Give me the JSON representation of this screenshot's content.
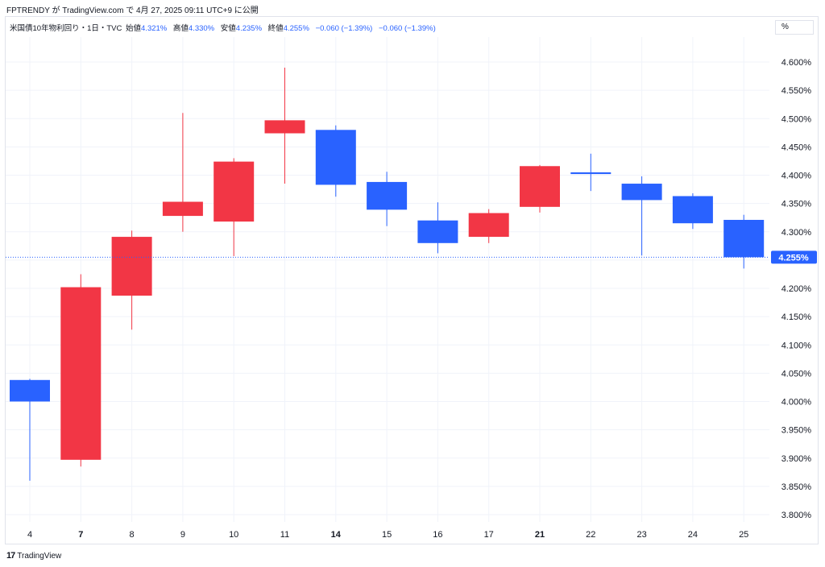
{
  "header": {
    "text": "FPTRENDY が TradingView.com で 4月 27, 2025 09:11 UTC+9 に公開"
  },
  "legend": {
    "symbol": "米国債10年物利回り・1日・TVC",
    "open_label": "始値",
    "open_value": "4.321%",
    "high_label": "高値",
    "high_value": "4.330%",
    "low_label": "安値",
    "low_value": "4.235%",
    "close_label": "終値",
    "close_value": "4.255%",
    "change": "−0.060 (−1.39%)",
    "change2": "−0.060 (−1.39%)"
  },
  "unit_button": "%",
  "footer": {
    "logo_mark": "17",
    "logo_text": "TradingView"
  },
  "colors": {
    "up": "#f23645",
    "down": "#2962ff",
    "grid": "#f0f3fa",
    "axis_text": "#131722"
  },
  "chart_data": {
    "type": "candlestick",
    "unit": "%",
    "ylim": [
      3.775,
      4.65
    ],
    "y_ticks": [
      "4.600%",
      "4.550%",
      "4.500%",
      "4.450%",
      "4.400%",
      "4.350%",
      "4.300%",
      "4.250%",
      "4.200%",
      "4.150%",
      "4.100%",
      "4.050%",
      "4.000%",
      "3.950%",
      "3.900%",
      "3.850%",
      "3.800%"
    ],
    "y_tick_values": [
      4.6,
      4.55,
      4.5,
      4.45,
      4.4,
      4.35,
      4.3,
      4.25,
      4.2,
      4.15,
      4.1,
      4.05,
      4.0,
      3.95,
      3.9,
      3.85,
      3.8
    ],
    "x_labels": [
      "4",
      "7",
      "8",
      "9",
      "10",
      "11",
      "14",
      "15",
      "16",
      "17",
      "21",
      "22",
      "23",
      "24",
      "25"
    ],
    "x_bold": [
      false,
      true,
      false,
      false,
      false,
      false,
      true,
      false,
      false,
      false,
      true,
      false,
      false,
      false,
      false
    ],
    "candles": [
      {
        "x": "4",
        "open": 4.038,
        "high": 4.04,
        "low": 3.86,
        "close": 4.0
      },
      {
        "x": "7",
        "open": 3.897,
        "high": 4.225,
        "low": 3.885,
        "close": 4.202
      },
      {
        "x": "8",
        "open": 4.187,
        "high": 4.302,
        "low": 4.127,
        "close": 4.291
      },
      {
        "x": "9",
        "open": 4.328,
        "high": 4.51,
        "low": 4.3,
        "close": 4.353
      },
      {
        "x": "10",
        "open": 4.318,
        "high": 4.43,
        "low": 4.257,
        "close": 4.424
      },
      {
        "x": "11",
        "open": 4.474,
        "high": 4.59,
        "low": 4.385,
        "close": 4.497
      },
      {
        "x": "14",
        "open": 4.48,
        "high": 4.488,
        "low": 4.362,
        "close": 4.383
      },
      {
        "x": "15",
        "open": 4.388,
        "high": 4.406,
        "low": 4.31,
        "close": 4.339
      },
      {
        "x": "16",
        "open": 4.32,
        "high": 4.352,
        "low": 4.262,
        "close": 4.28
      },
      {
        "x": "17",
        "open": 4.291,
        "high": 4.34,
        "low": 4.28,
        "close": 4.333
      },
      {
        "x": "21",
        "open": 4.344,
        "high": 4.418,
        "low": 4.334,
        "close": 4.416
      },
      {
        "x": "22",
        "open": 4.405,
        "high": 4.438,
        "low": 4.372,
        "close": 4.402
      },
      {
        "x": "23",
        "open": 4.385,
        "high": 4.398,
        "low": 4.258,
        "close": 4.356
      },
      {
        "x": "24",
        "open": 4.363,
        "high": 4.368,
        "low": 4.305,
        "close": 4.315
      },
      {
        "x": "25",
        "open": 4.321,
        "high": 4.33,
        "low": 4.235,
        "close": 4.255
      }
    ],
    "last_price": 4.255,
    "last_price_label": "4.255%"
  }
}
